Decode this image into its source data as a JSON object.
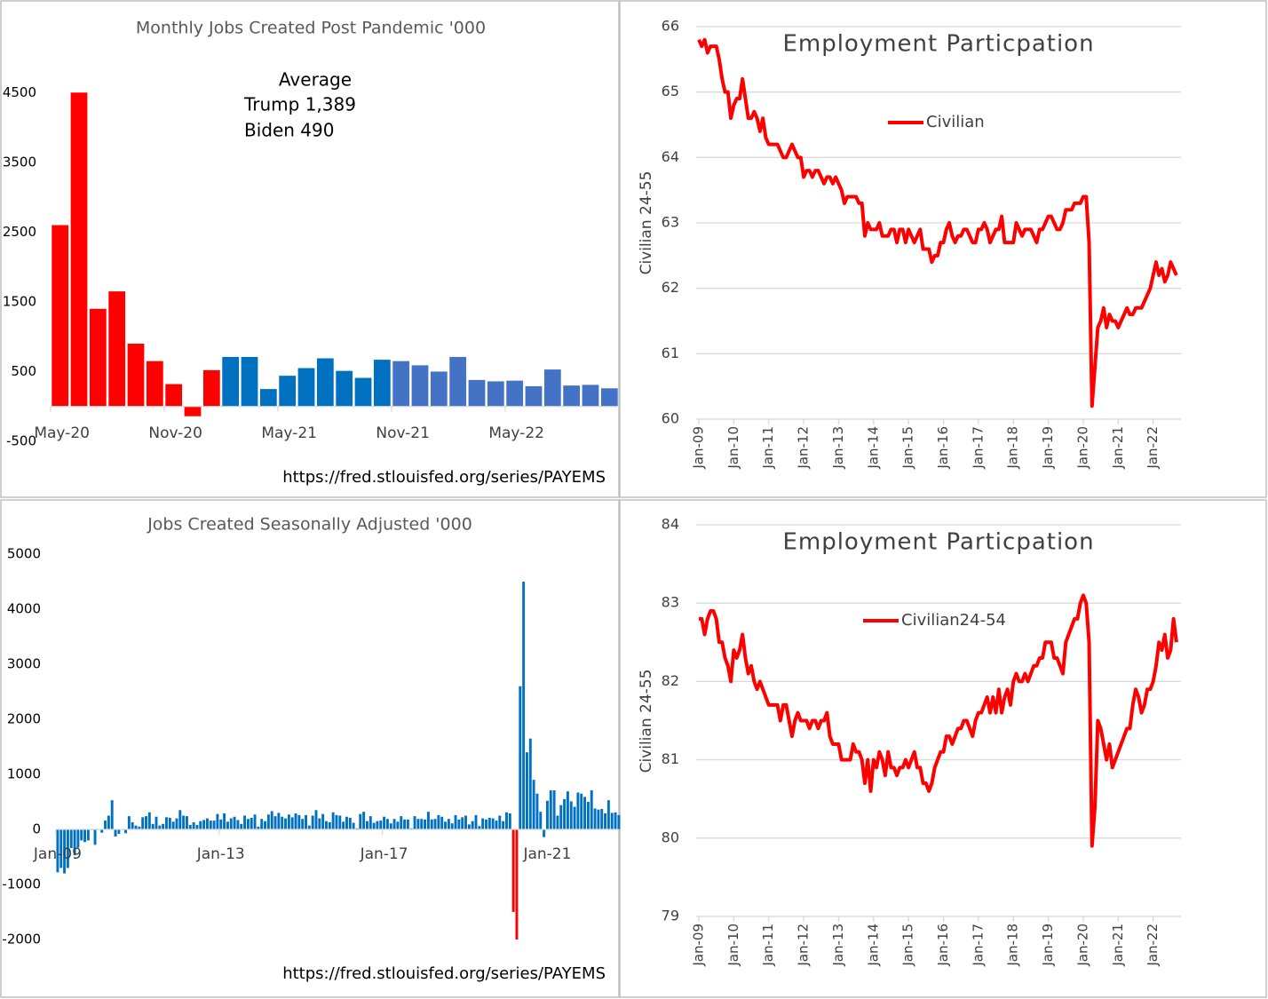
{
  "chart_data": [
    {
      "type": "bar",
      "title": "Monthly Jobs Created Post Pandemic '000",
      "categories": [
        "May-20",
        null,
        null,
        null,
        null,
        null,
        "Nov-20",
        null,
        null,
        null,
        null,
        null,
        "May-21",
        null,
        null,
        null,
        null,
        null,
        "Nov-21",
        null,
        null,
        null,
        null,
        null,
        "May-22",
        null,
        null,
        null,
        null,
        null
      ],
      "values": [
        2600,
        4500,
        1400,
        1650,
        900,
        650,
        320,
        -140,
        520,
        710,
        710,
        250,
        440,
        550,
        690,
        510,
        410,
        670,
        650,
        590,
        500,
        710,
        380,
        360,
        370,
        290,
        530,
        300,
        310,
        260
      ],
      "colors": [
        "#ff0000",
        "#ff0000",
        "#ff0000",
        "#ff0000",
        "#ff0000",
        "#ff0000",
        "#ff0000",
        "#ff0000",
        "#ff0000",
        "#0070c0",
        "#0070c0",
        "#0070c0",
        "#0070c0",
        "#0070c0",
        "#0070c0",
        "#0070c0",
        "#0070c0",
        "#0070c0",
        "#4472c4",
        "#4472c4",
        "#4472c4",
        "#4472c4",
        "#4472c4",
        "#4472c4",
        "#4472c4",
        "#4472c4",
        "#4472c4",
        "#4472c4",
        "#4472c4",
        "#4472c4"
      ],
      "ylim": [
        -500,
        5000
      ],
      "yticks": [
        -500,
        500,
        1500,
        2500,
        3500,
        4500
      ],
      "grid": false,
      "annotations": [
        "Average",
        "Trump 1,389",
        "Biden 490"
      ],
      "source": "https://fred.stlouisfed.org/series/PAYEMS"
    },
    {
      "type": "line",
      "title": "Employment Particpation",
      "y_label": "Civilian 24-55",
      "categories": [
        "Jan-09",
        null,
        null,
        null,
        null,
        null,
        null,
        null,
        null,
        null,
        null,
        null,
        "Jan-10",
        null,
        null,
        null,
        null,
        null,
        null,
        null,
        null,
        null,
        null,
        null,
        "Jan-11",
        null,
        null,
        null,
        null,
        null,
        null,
        null,
        null,
        null,
        null,
        null,
        "Jan-12",
        null,
        null,
        null,
        null,
        null,
        null,
        null,
        null,
        null,
        null,
        null,
        "Jan-13",
        null,
        null,
        null,
        null,
        null,
        null,
        null,
        null,
        null,
        null,
        null,
        "Jan-14",
        null,
        null,
        null,
        null,
        null,
        null,
        null,
        null,
        null,
        null,
        null,
        "Jan-15",
        null,
        null,
        null,
        null,
        null,
        null,
        null,
        null,
        null,
        null,
        null,
        "Jan-16",
        null,
        null,
        null,
        null,
        null,
        null,
        null,
        null,
        null,
        null,
        null,
        "Jan-17",
        null,
        null,
        null,
        null,
        null,
        null,
        null,
        null,
        null,
        null,
        null,
        "Jan-18",
        null,
        null,
        null,
        null,
        null,
        null,
        null,
        null,
        null,
        null,
        null,
        "Jan-19",
        null,
        null,
        null,
        null,
        null,
        null,
        null,
        null,
        null,
        null,
        null,
        "Jan-20",
        null,
        null,
        null,
        null,
        null,
        null,
        null,
        null,
        null,
        null,
        null,
        "Jan-21",
        null,
        null,
        null,
        null,
        null,
        null,
        null,
        null,
        null,
        null,
        null,
        "Jan-22",
        null,
        null,
        null,
        null,
        null,
        null,
        null,
        null
      ],
      "series": [
        {
          "name": "Civilian",
          "color": "#ff0000",
          "values": [
            65.8,
            65.7,
            65.8,
            65.6,
            65.7,
            65.7,
            65.7,
            65.5,
            65.2,
            65.0,
            65.0,
            64.6,
            64.8,
            64.9,
            64.9,
            65.2,
            64.9,
            64.6,
            64.6,
            64.7,
            64.6,
            64.4,
            64.6,
            64.3,
            64.2,
            64.2,
            64.2,
            64.2,
            64.1,
            64.0,
            64.0,
            64.1,
            64.2,
            64.1,
            64.0,
            64.0,
            63.7,
            63.8,
            63.8,
            63.7,
            63.8,
            63.8,
            63.7,
            63.6,
            63.7,
            63.7,
            63.6,
            63.7,
            63.6,
            63.5,
            63.3,
            63.4,
            63.4,
            63.4,
            63.4,
            63.3,
            63.3,
            62.8,
            63.0,
            62.9,
            62.9,
            62.9,
            63.0,
            62.8,
            62.8,
            62.8,
            62.9,
            62.9,
            62.7,
            62.9,
            62.9,
            62.7,
            62.9,
            62.8,
            62.7,
            62.8,
            62.9,
            62.6,
            62.6,
            62.6,
            62.4,
            62.5,
            62.5,
            62.7,
            62.7,
            62.9,
            63.0,
            62.8,
            62.7,
            62.8,
            62.8,
            62.9,
            62.9,
            62.8,
            62.7,
            62.7,
            62.9,
            62.9,
            63.0,
            62.9,
            62.7,
            62.8,
            62.9,
            62.9,
            63.1,
            62.7,
            62.7,
            62.7,
            62.7,
            63.0,
            62.9,
            62.8,
            62.9,
            62.9,
            62.9,
            62.8,
            62.7,
            62.9,
            62.9,
            63.0,
            63.1,
            63.1,
            63.0,
            62.9,
            62.9,
            63.0,
            63.2,
            63.2,
            63.2,
            63.3,
            63.3,
            63.3,
            63.4,
            63.4,
            62.7,
            60.2,
            60.8,
            61.4,
            61.5,
            61.7,
            61.4,
            61.6,
            61.5,
            61.5,
            61.4,
            61.5,
            61.6,
            61.7,
            61.6,
            61.6,
            61.7,
            61.7,
            61.7,
            61.8,
            61.9,
            62.0,
            62.2,
            62.4,
            62.2,
            62.3,
            62.1,
            62.2,
            62.4,
            62.3,
            62.2
          ]
        }
      ],
      "ylim": [
        60,
        66
      ],
      "yticks": [
        60,
        61,
        62,
        63,
        64,
        65,
        66
      ],
      "grid": true
    },
    {
      "type": "bar",
      "title": "Jobs Created Seasonally Adjusted '000",
      "categories": [
        "Jan-09",
        null,
        null,
        null,
        null,
        null,
        null,
        null,
        null,
        null,
        null,
        null,
        null,
        null,
        null,
        null,
        null,
        null,
        null,
        null,
        null,
        null,
        null,
        null,
        null,
        null,
        null,
        null,
        null,
        null,
        null,
        null,
        null,
        null,
        null,
        null,
        null,
        null,
        null,
        null,
        null,
        null,
        null,
        null,
        null,
        null,
        null,
        null,
        "Jan-13",
        null,
        null,
        null,
        null,
        null,
        null,
        null,
        null,
        null,
        null,
        null,
        null,
        null,
        null,
        null,
        null,
        null,
        null,
        null,
        null,
        null,
        null,
        null,
        null,
        null,
        null,
        null,
        null,
        null,
        null,
        null,
        null,
        null,
        null,
        null,
        null,
        null,
        null,
        null,
        null,
        null,
        null,
        null,
        null,
        null,
        null,
        null,
        "Jan-17",
        null,
        null,
        null,
        null,
        null,
        null,
        null,
        null,
        null,
        null,
        null,
        null,
        null,
        null,
        null,
        null,
        null,
        null,
        null,
        null,
        null,
        null,
        null,
        null,
        null,
        null,
        null,
        null,
        null,
        null,
        null,
        null,
        null,
        null,
        null,
        null,
        null,
        null,
        null,
        null,
        null,
        null,
        null,
        null,
        null,
        null,
        null,
        "Jan-21",
        null,
        null,
        null,
        null,
        null,
        null,
        null,
        null,
        null,
        null,
        null,
        null,
        null,
        null,
        null,
        null,
        null,
        null,
        null,
        null,
        null
      ],
      "values": [
        -780,
        -700,
        -800,
        -700,
        -340,
        -470,
        -330,
        -200,
        -230,
        -200,
        -10,
        -280,
        -10,
        -60,
        160,
        250,
        530,
        -130,
        -80,
        -10,
        -70,
        240,
        130,
        70,
        50,
        220,
        240,
        310,
        100,
        230,
        70,
        100,
        220,
        210,
        140,
        200,
        350,
        250,
        240,
        80,
        130,
        80,
        150,
        170,
        200,
        160,
        160,
        280,
        180,
        290,
        140,
        200,
        230,
        170,
        100,
        250,
        190,
        210,
        270,
        50,
        190,
        150,
        270,
        330,
        240,
        300,
        230,
        200,
        270,
        220,
        290,
        260,
        190,
        260,
        70,
        250,
        350,
        200,
        280,
        150,
        130,
        310,
        260,
        250,
        140,
        230,
        210,
        120,
        20,
        280,
        320,
        150,
        240,
        120,
        150,
        160,
        230,
        190,
        110,
        190,
        140,
        240,
        180,
        180,
        20,
        240,
        190,
        190,
        180,
        320,
        180,
        190,
        260,
        230,
        140,
        190,
        110,
        260,
        180,
        220,
        250,
        90,
        150,
        260,
        60,
        200,
        180,
        210,
        200,
        160,
        250,
        150,
        310,
        290,
        -1500,
        -2000,
        2600,
        4500,
        1400,
        1650,
        900,
        650,
        320,
        -140,
        520,
        710,
        710,
        250,
        440,
        550,
        690,
        510,
        410,
        670,
        650,
        590,
        500,
        710,
        380,
        360,
        370,
        290,
        530,
        300,
        310,
        260
      ],
      "color": "#0070c0",
      "colors_override": {
        "134": "#ff0000",
        "135": "#ff0000"
      },
      "ylim": [
        -2000,
        5000
      ],
      "yticks": [
        -2000,
        -1000,
        0,
        1000,
        2000,
        3000,
        4000,
        5000
      ],
      "grid": false,
      "source": "https://fred.stlouisfed.org/series/PAYEMS"
    },
    {
      "type": "line",
      "title": "Employment Particpation",
      "y_label": "Civilian 24-55",
      "categories": [
        "Jan-09",
        null,
        null,
        null,
        null,
        null,
        null,
        null,
        null,
        null,
        null,
        null,
        "Jan-10",
        null,
        null,
        null,
        null,
        null,
        null,
        null,
        null,
        null,
        null,
        null,
        "Jan-11",
        null,
        null,
        null,
        null,
        null,
        null,
        null,
        null,
        null,
        null,
        null,
        "Jan-12",
        null,
        null,
        null,
        null,
        null,
        null,
        null,
        null,
        null,
        null,
        null,
        "Jan-13",
        null,
        null,
        null,
        null,
        null,
        null,
        null,
        null,
        null,
        null,
        null,
        "Jan-14",
        null,
        null,
        null,
        null,
        null,
        null,
        null,
        null,
        null,
        null,
        null,
        "Jan-15",
        null,
        null,
        null,
        null,
        null,
        null,
        null,
        null,
        null,
        null,
        null,
        "Jan-16",
        null,
        null,
        null,
        null,
        null,
        null,
        null,
        null,
        null,
        null,
        null,
        "Jan-17",
        null,
        null,
        null,
        null,
        null,
        null,
        null,
        null,
        null,
        null,
        null,
        "Jan-18",
        null,
        null,
        null,
        null,
        null,
        null,
        null,
        null,
        null,
        null,
        null,
        "Jan-19",
        null,
        null,
        null,
        null,
        null,
        null,
        null,
        null,
        null,
        null,
        null,
        "Jan-20",
        null,
        null,
        null,
        null,
        null,
        null,
        null,
        null,
        null,
        null,
        null,
        "Jan-21",
        null,
        null,
        null,
        null,
        null,
        null,
        null,
        null,
        null,
        null,
        null,
        "Jan-22",
        null,
        null,
        null,
        null,
        null,
        null,
        null,
        null
      ],
      "series": [
        {
          "name": "Civilian24-54",
          "color": "#ff0000",
          "values": [
            82.8,
            82.8,
            82.6,
            82.8,
            82.9,
            82.9,
            82.8,
            82.5,
            82.5,
            82.3,
            82.2,
            82.0,
            82.4,
            82.3,
            82.4,
            82.6,
            82.3,
            82.1,
            82.2,
            82.0,
            81.9,
            82.0,
            81.9,
            81.8,
            81.7,
            81.7,
            81.7,
            81.7,
            81.5,
            81.7,
            81.7,
            81.5,
            81.3,
            81.5,
            81.6,
            81.5,
            81.5,
            81.5,
            81.4,
            81.5,
            81.5,
            81.4,
            81.5,
            81.5,
            81.6,
            81.3,
            81.2,
            81.2,
            81.2,
            81.0,
            81.0,
            81.0,
            81.0,
            81.2,
            81.1,
            81.1,
            81.0,
            80.7,
            81.0,
            80.6,
            81.0,
            80.9,
            81.1,
            81.0,
            80.8,
            81.1,
            80.9,
            80.9,
            80.8,
            80.9,
            80.9,
            81.0,
            80.9,
            81.0,
            81.1,
            80.9,
            80.9,
            80.7,
            80.7,
            80.6,
            80.7,
            80.9,
            81.0,
            81.1,
            81.1,
            81.3,
            81.3,
            81.2,
            81.3,
            81.4,
            81.4,
            81.5,
            81.5,
            81.4,
            81.3,
            81.5,
            81.6,
            81.6,
            81.7,
            81.8,
            81.6,
            81.8,
            81.6,
            81.9,
            81.6,
            81.8,
            81.9,
            81.7,
            82.0,
            82.1,
            82.0,
            82.0,
            82.1,
            82.0,
            82.1,
            82.2,
            82.2,
            82.3,
            82.3,
            82.5,
            82.5,
            82.5,
            82.3,
            82.3,
            82.2,
            82.1,
            82.5,
            82.6,
            82.7,
            82.8,
            82.8,
            83.0,
            83.1,
            83.0,
            82.5,
            79.9,
            80.4,
            81.5,
            81.4,
            81.2,
            81.0,
            81.2,
            80.9,
            81.0,
            81.1,
            81.2,
            81.3,
            81.4,
            81.4,
            81.7,
            81.9,
            81.8,
            81.6,
            81.7,
            81.9,
            81.9,
            82.0,
            82.2,
            82.5,
            82.4,
            82.6,
            82.3,
            82.4,
            82.8,
            82.5
          ]
        }
      ],
      "ylim": [
        79,
        84
      ],
      "yticks": [
        79,
        80,
        81,
        82,
        83,
        84
      ],
      "grid": true
    }
  ]
}
